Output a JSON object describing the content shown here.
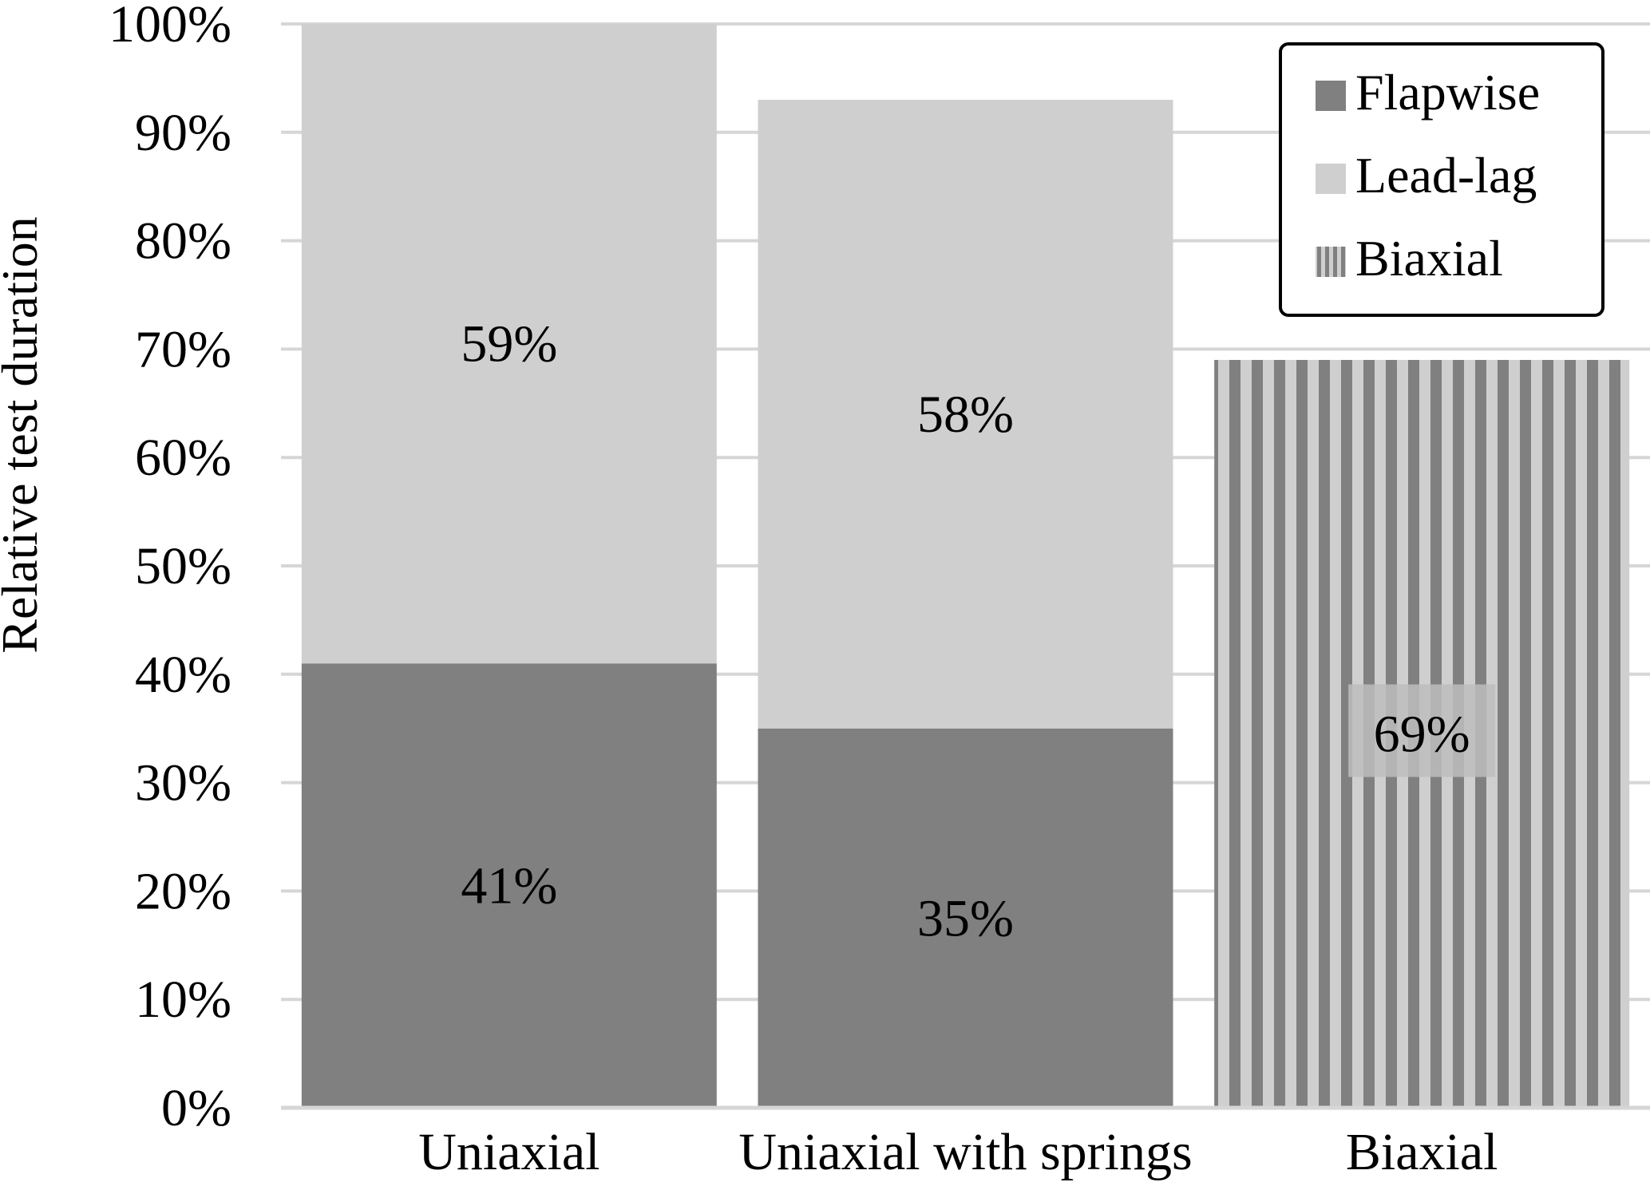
{
  "chart_data": {
    "type": "bar",
    "stacked": true,
    "title": "",
    "xlabel": "",
    "ylabel": "Relative test duration",
    "ylim": [
      0,
      100
    ],
    "y_ticks": [
      "0%",
      "10%",
      "20%",
      "30%",
      "40%",
      "50%",
      "60%",
      "70%",
      "80%",
      "90%",
      "100%"
    ],
    "grid": true,
    "legend_position": "top-right",
    "categories": [
      "Uniaxial",
      "Uniaxial with springs",
      "Biaxial"
    ],
    "series": [
      {
        "name": "Flapwise",
        "color": "#808080",
        "values": [
          41,
          35,
          0
        ],
        "labels": [
          "41%",
          "35%",
          ""
        ]
      },
      {
        "name": "Lead-lag",
        "color": "#d0cfd0",
        "values": [
          59,
          58,
          0
        ],
        "labels": [
          "59%",
          "58%",
          ""
        ]
      },
      {
        "name": "Biaxial",
        "color": "#a0a0a0",
        "pattern": "vertical-stripes",
        "values": [
          0,
          0,
          69
        ],
        "labels": [
          "",
          "",
          "69%"
        ]
      }
    ]
  }
}
